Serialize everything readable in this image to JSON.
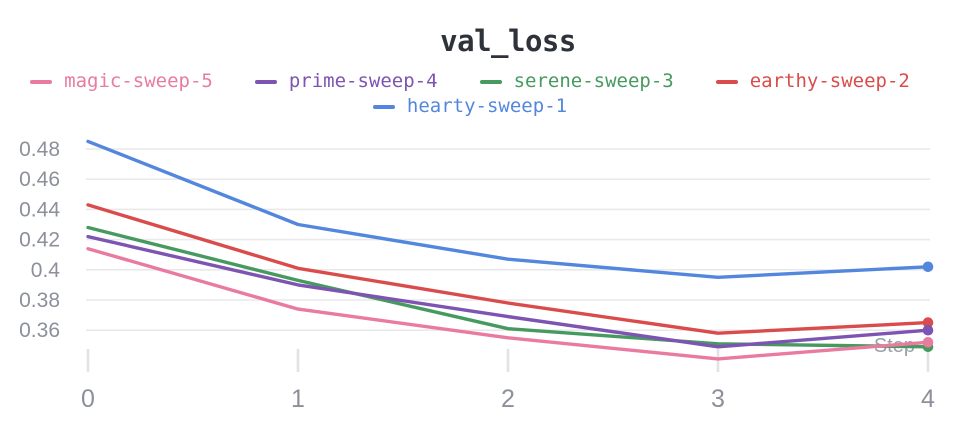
{
  "chart_data": {
    "type": "line",
    "title": "val_loss",
    "xlabel": "Step",
    "x": [
      0,
      1,
      2,
      3,
      4
    ],
    "x_tick_labels": [
      "0",
      "1",
      "2",
      "3",
      "4"
    ],
    "y_tick_labels": [
      "0.48",
      "0.46",
      "0.44",
      "0.42",
      "0.4",
      "0.38",
      "0.36"
    ],
    "y_tick_values": [
      0.48,
      0.46,
      0.44,
      0.42,
      0.4,
      0.38,
      0.36
    ],
    "xlim": [
      0,
      4
    ],
    "ylim": [
      0.332,
      0.487
    ],
    "grid": "horizontal",
    "legend_position": "top",
    "marker": "dot-at-last-point",
    "series": [
      {
        "name": "magic-sweep-5",
        "color": "#E87B9F",
        "values": [
          0.414,
          0.374,
          0.355,
          0.341,
          0.352
        ]
      },
      {
        "name": "prime-sweep-4",
        "color": "#7D54B2",
        "values": [
          0.422,
          0.39,
          0.369,
          0.349,
          0.36
        ]
      },
      {
        "name": "serene-sweep-3",
        "color": "#479A5F",
        "values": [
          0.428,
          0.393,
          0.361,
          0.351,
          0.349
        ]
      },
      {
        "name": "earthy-sweep-2",
        "color": "#DA4C4C",
        "values": [
          0.443,
          0.401,
          0.378,
          0.358,
          0.365
        ]
      },
      {
        "name": "hearty-sweep-1",
        "color": "#5387DD",
        "values": [
          0.485,
          0.43,
          0.407,
          0.395,
          0.402
        ]
      }
    ],
    "style": {
      "background": "#ffffff",
      "title_color": "#2e323a",
      "tick_label_color": "#8c909a",
      "axis_label_color": "#9aa0a8",
      "gridline_color": "#e9e9ec",
      "tick_mark_color": "#e3e3e6"
    }
  }
}
